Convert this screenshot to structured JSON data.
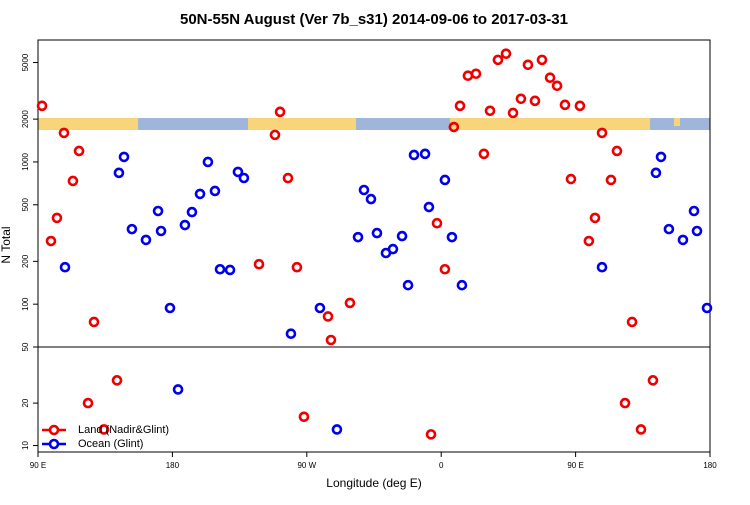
{
  "chart_data": [
    {
      "type": "scatter",
      "title": "50N-55N August (Ver 7b_s31)   2014-09-06 to 2017-03-31",
      "ylabel": "N Total",
      "ylog": true,
      "ylim": [
        50,
        7200
      ],
      "yticks": [
        50,
        100,
        200,
        500,
        1000,
        2000,
        5000
      ],
      "xlim": [
        90,
        540
      ],
      "series": [
        {
          "name": "Land (Nadir&Glint)",
          "color": "#ee0000",
          "x": [
            92.7,
            98.7,
            102.7,
            107.4,
            113.4,
            117.5,
            127.5,
            238.0,
            248.7,
            252.1,
            257.4,
            263.4,
            284.2,
            286.2,
            298.9,
            357.2,
            362.5,
            368.5,
            372.6,
            377.9,
            383.3,
            388.6,
            392.7,
            398.0,
            403.4,
            408.1,
            413.4,
            418.1,
            422.8,
            427.5,
            432.9,
            437.6,
            442.9,
            446.9,
            452.9,
            458.9,
            463.0,
            467.7,
            473.7,
            477.7,
            487.8
          ],
          "values": [
            2480,
            278,
            404,
            1600,
            735,
            1195,
            75,
            191,
            1550,
            2250,
            770,
            182,
            82,
            56,
            102,
            371,
            176,
            1760,
            2480,
            4040,
            4170,
            1140,
            2290,
            5220,
            5770,
            2210,
            2780,
            4820,
            2690,
            5220,
            3910,
            3430,
            2520,
            758,
            2480,
            278,
            404,
            1600,
            747,
            1195,
            75
          ]
        },
        {
          "name": "Ocean (Glint)",
          "color": "#0000ee",
          "x": [
            108.1,
            144.2,
            147.6,
            152.9,
            162.3,
            170.4,
            172.4,
            178.4,
            188.4,
            193.1,
            198.5,
            203.8,
            208.5,
            211.9,
            218.6,
            223.9,
            227.9,
            259.4,
            278.8,
            304.3,
            308.3,
            313.0,
            317.0,
            323.0,
            327.7,
            333.8,
            337.8,
            341.8,
            349.2,
            351.8,
            362.5,
            367.2,
            373.9,
            467.7,
            503.8,
            507.2,
            512.5,
            521.9,
            529.3,
            531.3,
            538.0
          ],
          "values": [
            182,
            838,
            1085,
            337,
            283,
            452,
            327,
            94,
            360,
            444,
            596,
            1000,
            625,
            176,
            174,
            851,
            771,
            62,
            94,
            296,
            635,
            548,
            316,
            229,
            244,
            301,
            136,
            1120,
            1140,
            482,
            747,
            296,
            136,
            182,
            838,
            1085,
            337,
            283,
            452,
            327,
            94
          ]
        }
      ]
    },
    {
      "type": "scatter",
      "xlabel": "Longitude (deg E)",
      "ylog": true,
      "ylim": [
        9,
        50
      ],
      "yticks": [
        10,
        20
      ],
      "xlim": [
        90,
        540
      ],
      "xticks": [
        {
          "value": 90,
          "label": "90 E"
        },
        {
          "value": 180,
          "label": "180"
        },
        {
          "value": 270,
          "label": "90 W"
        },
        {
          "value": 360,
          "label": "0"
        },
        {
          "value": 450,
          "label": "90 E"
        },
        {
          "value": 540,
          "label": "180"
        }
      ],
      "legend": "bottomleft",
      "series": [
        {
          "name": "Land (Nadir&Glint)",
          "color": "#ee0000",
          "x": [
            123.5,
            134.2,
            142.9,
            268.1,
            353.2,
            483.1,
            493.8,
            501.8
          ],
          "values": [
            20,
            13,
            29,
            16,
            12,
            20,
            13,
            29
          ]
        },
        {
          "name": "Ocean (Glint)",
          "color": "#0000ee",
          "x": [
            183.8,
            290.2
          ],
          "values": [
            25,
            13
          ]
        }
      ]
    }
  ]
}
